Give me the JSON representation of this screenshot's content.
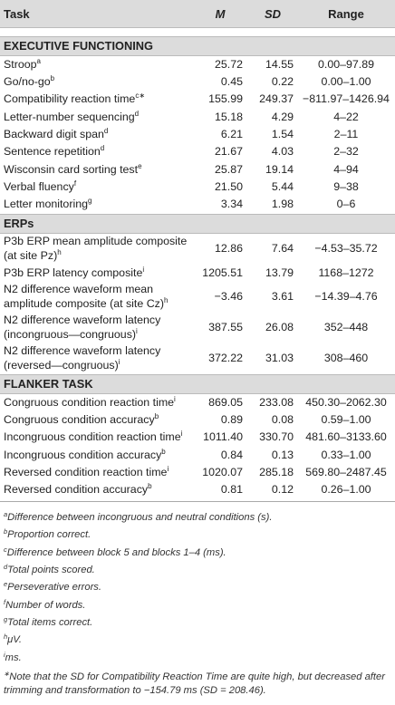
{
  "header": {
    "task": "Task",
    "m": "M",
    "sd": "SD",
    "range": "Range"
  },
  "sections": [
    {
      "title": "EXECUTIVE FUNCTIONING",
      "rows": [
        {
          "task": "Stroop",
          "sup": "a",
          "m": "25.72",
          "sd": "14.55",
          "range": "0.00–97.89"
        },
        {
          "task": "Go/no-go",
          "sup": "b",
          "m": "0.45",
          "sd": "0.22",
          "range": "0.00–1.00"
        },
        {
          "task": "Compatibility reaction time",
          "sup": "c∗",
          "m": "155.99",
          "sd": "249.37",
          "range": "−811.97–1426.94"
        },
        {
          "task": "Letter-number sequencing",
          "sup": "d",
          "m": "15.18",
          "sd": "4.29",
          "range": "4–22"
        },
        {
          "task": "Backward digit span",
          "sup": "d",
          "m": "6.21",
          "sd": "1.54",
          "range": "2–11"
        },
        {
          "task": "Sentence repetition",
          "sup": "d",
          "m": "21.67",
          "sd": "4.03",
          "range": "2–32"
        },
        {
          "task": "Wisconsin card sorting test",
          "sup": "e",
          "m": "25.87",
          "sd": "19.14",
          "range": "4–94"
        },
        {
          "task": "Verbal fluency",
          "sup": "f",
          "m": "21.50",
          "sd": "5.44",
          "range": "9–38"
        },
        {
          "task": "Letter monitoring",
          "sup": "g",
          "m": "3.34",
          "sd": "1.98",
          "range": "0–6"
        }
      ]
    },
    {
      "title": "ERPs",
      "rows": [
        {
          "task": "P3b ERP mean amplitude composite (at site Pz)",
          "sup": "h",
          "m": "12.86",
          "sd": "7.64",
          "range": "−4.53–35.72"
        },
        {
          "task": "P3b ERP latency composite",
          "sup": "i",
          "m": "1205.51",
          "sd": "13.79",
          "range": "1168–1272"
        },
        {
          "task": "N2 difference waveform mean amplitude composite (at site Cz)",
          "sup": "h",
          "m": "−3.46",
          "sd": "3.61",
          "range": "−14.39–4.76"
        },
        {
          "task": "N2 difference waveform latency (incongruous—congruous)",
          "sup": "i",
          "m": "387.55",
          "sd": "26.08",
          "range": "352–448"
        },
        {
          "task": "N2 difference waveform latency (reversed—congruous)",
          "sup": "i",
          "m": "372.22",
          "sd": "31.03",
          "range": "308–460"
        }
      ]
    },
    {
      "title": "FLANKER TASK",
      "rows": [
        {
          "task": "Congruous condition reaction time",
          "sup": "i",
          "m": "869.05",
          "sd": "233.08",
          "range": "450.30–2062.30"
        },
        {
          "task": "Congruous condition accuracy",
          "sup": "b",
          "m": "0.89",
          "sd": "0.08",
          "range": "0.59–1.00"
        },
        {
          "task": "Incongruous condition reaction time",
          "sup": "i",
          "m": "1011.40",
          "sd": "330.70",
          "range": "481.60–3133.60"
        },
        {
          "task": "Incongruous condition accuracy",
          "sup": "b",
          "m": "0.84",
          "sd": "0.13",
          "range": "0.33–1.00"
        },
        {
          "task": "Reversed condition reaction time",
          "sup": "i",
          "m": "1020.07",
          "sd": "285.18",
          "range": "569.80–2487.45"
        },
        {
          "task": "Reversed condition accuracy",
          "sup": "b",
          "m": "0.81",
          "sd": "0.12",
          "range": "0.26–1.00"
        }
      ]
    }
  ],
  "notes": [
    {
      "mark": "a",
      "text": "Difference between incongruous and neutral conditions (s)."
    },
    {
      "mark": "b",
      "text": "Proportion correct."
    },
    {
      "mark": "c",
      "text": "Difference between block 5 and blocks 1–4 (ms)."
    },
    {
      "mark": "d",
      "text": "Total points scored."
    },
    {
      "mark": "e",
      "text": "Perseverative errors."
    },
    {
      "mark": "f",
      "text": "Number of words."
    },
    {
      "mark": "g",
      "text": "Total items correct."
    },
    {
      "mark": "h",
      "text": "μV."
    },
    {
      "mark": "i",
      "text": "ms."
    }
  ],
  "star_note": {
    "mark": "∗",
    "text": "Note that the SD for Compatibility Reaction Time are quite high, but decreased after trimming and transformation to −154.79 ms (SD = 208.46)."
  }
}
